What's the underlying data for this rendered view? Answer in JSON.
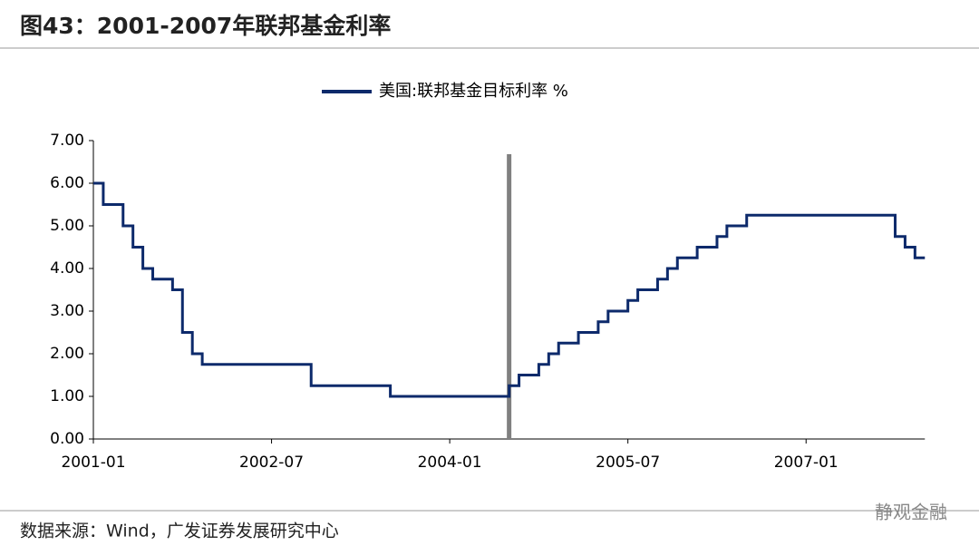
{
  "header": {
    "title": "图43：2001-2007年联邦基金利率"
  },
  "chart_data": {
    "type": "step-line",
    "x": [
      "2001-01",
      "2001-02",
      "2001-03",
      "2001-04",
      "2001-05",
      "2001-06",
      "2001-07",
      "2001-08",
      "2001-09",
      "2001-10",
      "2001-11",
      "2001-12",
      "2002-01",
      "2002-02",
      "2002-03",
      "2002-04",
      "2002-05",
      "2002-06",
      "2002-07",
      "2002-08",
      "2002-09",
      "2002-10",
      "2002-11",
      "2002-12",
      "2003-01",
      "2003-02",
      "2003-03",
      "2003-04",
      "2003-05",
      "2003-06",
      "2003-07",
      "2003-08",
      "2003-09",
      "2003-10",
      "2003-11",
      "2003-12",
      "2004-01",
      "2004-02",
      "2004-03",
      "2004-04",
      "2004-05",
      "2004-06",
      "2004-07",
      "2004-08",
      "2004-09",
      "2004-10",
      "2004-11",
      "2004-12",
      "2005-01",
      "2005-02",
      "2005-03",
      "2005-04",
      "2005-05",
      "2005-06",
      "2005-07",
      "2005-08",
      "2005-09",
      "2005-10",
      "2005-11",
      "2005-12",
      "2006-01",
      "2006-02",
      "2006-03",
      "2006-04",
      "2006-05",
      "2006-06",
      "2006-07",
      "2006-08",
      "2006-09",
      "2006-10",
      "2006-11",
      "2006-12",
      "2007-01",
      "2007-02",
      "2007-03",
      "2007-04",
      "2007-05",
      "2007-06",
      "2007-07",
      "2007-08",
      "2007-09",
      "2007-10",
      "2007-11",
      "2007-12"
    ],
    "series": [
      {
        "name": "美国:联邦基金目标利率 %",
        "color": "#0d2a6b",
        "values": [
          6.0,
          5.5,
          5.5,
          5.0,
          4.5,
          4.0,
          3.75,
          3.75,
          3.5,
          2.5,
          2.0,
          1.75,
          1.75,
          1.75,
          1.75,
          1.75,
          1.75,
          1.75,
          1.75,
          1.75,
          1.75,
          1.75,
          1.25,
          1.25,
          1.25,
          1.25,
          1.25,
          1.25,
          1.25,
          1.25,
          1.0,
          1.0,
          1.0,
          1.0,
          1.0,
          1.0,
          1.0,
          1.0,
          1.0,
          1.0,
          1.0,
          1.0,
          1.25,
          1.5,
          1.5,
          1.75,
          2.0,
          2.25,
          2.25,
          2.5,
          2.5,
          2.75,
          3.0,
          3.0,
          3.25,
          3.5,
          3.5,
          3.75,
          4.0,
          4.25,
          4.25,
          4.5,
          4.5,
          4.75,
          5.0,
          5.0,
          5.25,
          5.25,
          5.25,
          5.25,
          5.25,
          5.25,
          5.25,
          5.25,
          5.25,
          5.25,
          5.25,
          5.25,
          5.25,
          5.25,
          5.25,
          4.75,
          4.5,
          4.25
        ]
      }
    ],
    "ylim": [
      0,
      7
    ],
    "yticks": [
      {
        "value": 0,
        "label": "0.00"
      },
      {
        "value": 1,
        "label": "1.00"
      },
      {
        "value": 2,
        "label": "2.00"
      },
      {
        "value": 3,
        "label": "3.00"
      },
      {
        "value": 4,
        "label": "4.00"
      },
      {
        "value": 5,
        "label": "5.00"
      },
      {
        "value": 6,
        "label": "6.00"
      },
      {
        "value": 7,
        "label": "7.00"
      }
    ],
    "xticks": [
      "2001-01",
      "2002-07",
      "2004-01",
      "2005-07",
      "2007-01"
    ],
    "reference_line": {
      "x": "2004-07",
      "color": "#808080"
    },
    "legend": "top"
  },
  "footer": {
    "source": "数据来源：Wind，广发证券发展研究中心",
    "watermark": "静观金融"
  }
}
